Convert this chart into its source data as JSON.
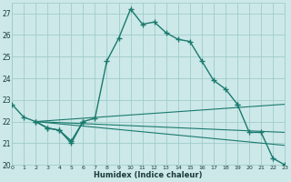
{
  "xlabel": "Humidex (Indice chaleur)",
  "xlim": [
    0,
    23
  ],
  "ylim": [
    20,
    27.5
  ],
  "yticks": [
    20,
    21,
    22,
    23,
    24,
    25,
    26,
    27
  ],
  "xticks": [
    0,
    1,
    2,
    3,
    4,
    5,
    6,
    7,
    8,
    9,
    10,
    11,
    12,
    13,
    14,
    15,
    16,
    17,
    18,
    19,
    20,
    21,
    22,
    23
  ],
  "bg_color": "#cce8e8",
  "grid_color": "#a0cccc",
  "line_color": "#1a7a6e",
  "line1_x": [
    0,
    1,
    2,
    3,
    4,
    5,
    6,
    7,
    8,
    9,
    10,
    11,
    12,
    13,
    14,
    15,
    16,
    17,
    18,
    19
  ],
  "line1_y": [
    22.8,
    22.2,
    22.0,
    21.7,
    21.6,
    21.0,
    22.0,
    22.15,
    24.8,
    25.85,
    27.2,
    26.5,
    26.6,
    26.1,
    25.8,
    25.7,
    24.8,
    23.9,
    23.5,
    22.8
  ],
  "line2a_x": [
    2,
    3,
    4,
    5,
    6
  ],
  "line2a_y": [
    22.0,
    21.7,
    21.6,
    21.1,
    22.0
  ],
  "line2b_x": [
    19,
    20,
    21,
    22,
    23
  ],
  "line2b_y": [
    22.8,
    21.5,
    21.5,
    20.3,
    20.0
  ],
  "flat_lines": [
    {
      "x": [
        2,
        23
      ],
      "y": [
        22.0,
        22.8
      ]
    },
    {
      "x": [
        2,
        23
      ],
      "y": [
        22.0,
        21.5
      ]
    },
    {
      "x": [
        2,
        23
      ],
      "y": [
        22.0,
        20.9
      ]
    }
  ]
}
